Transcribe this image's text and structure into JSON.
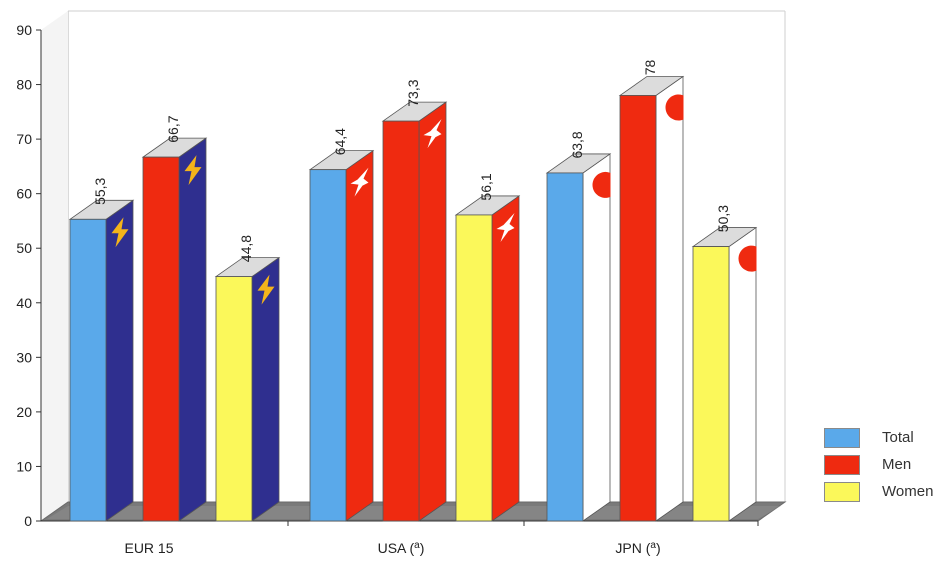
{
  "chart_data": {
    "type": "bar",
    "categories": [
      "EUR 15",
      "USA (a)",
      "JPN (a)"
    ],
    "series": [
      {
        "name": "Total",
        "values": [
          55.3,
          64.4,
          63.8
        ]
      },
      {
        "name": "Men",
        "values": [
          66.7,
          73.3,
          78
        ]
      },
      {
        "name": "Women",
        "values": [
          44.8,
          56.1,
          50.3
        ]
      }
    ],
    "value_labels": [
      [
        "55,3",
        "64,4",
        "63,8"
      ],
      [
        "66,7",
        "73,3",
        "78"
      ],
      [
        "44,8",
        "56,1",
        "50,3"
      ]
    ],
    "ylim": [
      0,
      90
    ],
    "yticks": [
      "0",
      "10",
      "20",
      "30",
      "40",
      "50",
      "60",
      "70",
      "80",
      "90"
    ],
    "grid": false,
    "legend_position": "bottom-right",
    "style_3d": true,
    "colors": {
      "Total": "#5aa9ea",
      "Men": "#ef2a10",
      "Women": "#fbf85a",
      "side_EUR": "#2f2f8f",
      "side_USA": "#ef2a10",
      "side_JPN": "#ffffff",
      "top": "#dcdcdc",
      "floor": "#7a7a7a"
    },
    "side_icons": [
      "star-icon",
      "eagle-icon",
      "sun-disc-icon"
    ]
  },
  "legend": {
    "items": [
      {
        "label": "Total",
        "color": "#5aa9ea"
      },
      {
        "label": "Men",
        "color": "#ef2a10"
      },
      {
        "label": "Women",
        "color": "#fbf85a"
      }
    ]
  }
}
